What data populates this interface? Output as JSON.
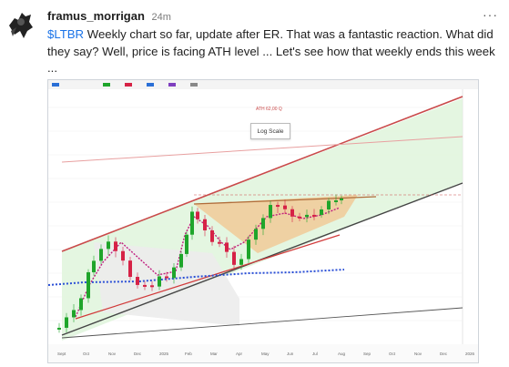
{
  "post": {
    "username": "framus_morrigan",
    "timestamp": "24m",
    "ticker": "$LTBR",
    "text": " Weekly chart so far, update after ER.  That was a fantastic reaction. What did they say? Well, price is facing ATH level ... Let's see how that weekly ends this week ...",
    "more_icon": "ellipsis-icon",
    "avatar_icon": "avatar-icon"
  },
  "chart": {
    "log_scale_label": "Log Scale",
    "ath_label": "ATH 62,00 Q",
    "x_ticks": [
      "Sept",
      "Oct",
      "Nov",
      "Dec",
      "2025",
      "Feb",
      "Mar",
      "Apr",
      "May",
      "Jun",
      "Jul",
      "Aug",
      "Sep",
      "Oct",
      "Nov",
      "Dec",
      "2026"
    ],
    "colors": {
      "up": "#1fa52b",
      "down": "#d62246",
      "channel": "#c94a4a",
      "green_fill": "#dff5dc",
      "orange_fill": "#f3c48e"
    }
  }
}
